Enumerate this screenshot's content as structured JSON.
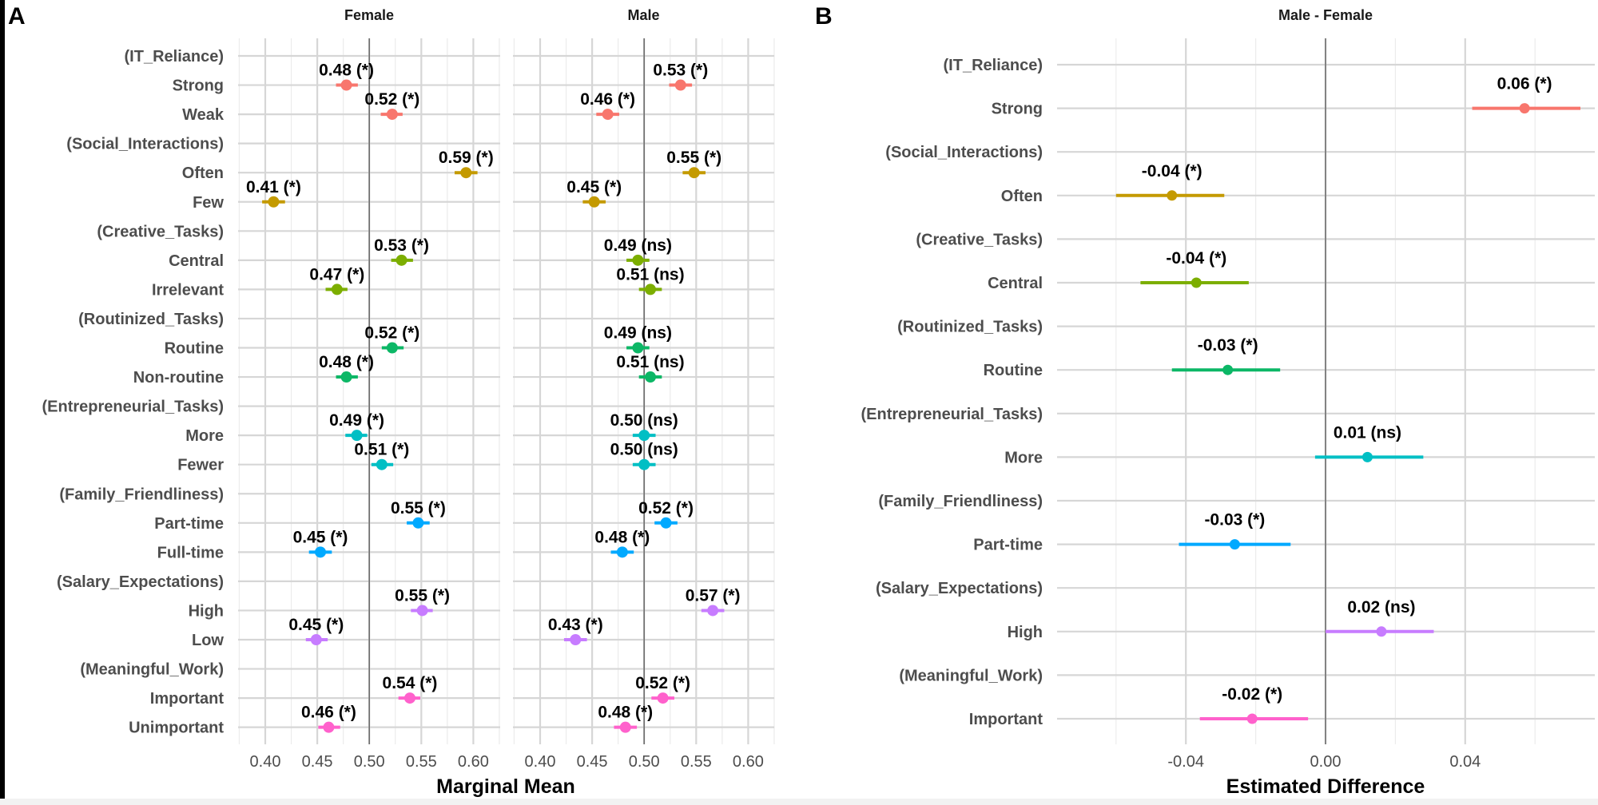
{
  "chart_data": [
    {
      "panel": "A",
      "type": "scatter",
      "subtype": "dot-and-whisker (marginal means with CI)",
      "facets": [
        "Female",
        "Male"
      ],
      "xlabel": "Marginal Mean",
      "xlim": [
        0.375,
        0.63
      ],
      "xticks": [
        "0.40",
        "0.45",
        "0.50",
        "0.55",
        "0.60"
      ],
      "reference_line": 0.5,
      "grid": true,
      "y_categories": [
        "(IT_Reliance)",
        "Strong",
        "Weak",
        "(Social_Interactions)",
        "Often",
        "Few",
        "(Creative_Tasks)",
        "Central",
        "Irrelevant",
        "(Routinized_Tasks)",
        "Routine",
        "Non-routine",
        "(Entrepreneurial_Tasks)",
        "More",
        "Fewer",
        "(Family_Friendliness)",
        "Part-time",
        "Full-time",
        "(Salary_Expectations)",
        "High",
        "Low",
        "(Meaningful_Work)",
        "Important",
        "Unimportant"
      ],
      "series": [
        {
          "name": "Female",
          "points": [
            {
              "level": "Strong",
              "attribute": "IT_Reliance",
              "estimate": 0.478,
              "lower": 0.468,
              "upper": 0.489,
              "label": "0.48 (*)",
              "color": "#F8766D"
            },
            {
              "level": "Weak",
              "attribute": "IT_Reliance",
              "estimate": 0.522,
              "lower": 0.511,
              "upper": 0.532,
              "label": "0.52 (*)",
              "color": "#F8766D"
            },
            {
              "level": "Often",
              "attribute": "Social_Interactions",
              "estimate": 0.593,
              "lower": 0.582,
              "upper": 0.604,
              "label": "0.59 (*)",
              "color": "#C49A00"
            },
            {
              "level": "Few",
              "attribute": "Social_Interactions",
              "estimate": 0.408,
              "lower": 0.397,
              "upper": 0.419,
              "label": "0.41 (*)",
              "color": "#C49A00"
            },
            {
              "level": "Central",
              "attribute": "Creative_Tasks",
              "estimate": 0.531,
              "lower": 0.521,
              "upper": 0.542,
              "label": "0.53 (*)",
              "color": "#7CAE00"
            },
            {
              "level": "Irrelevant",
              "attribute": "Creative_Tasks",
              "estimate": 0.469,
              "lower": 0.458,
              "upper": 0.479,
              "label": "0.47 (*)",
              "color": "#7CAE00"
            },
            {
              "level": "Routine",
              "attribute": "Routinized_Tasks",
              "estimate": 0.522,
              "lower": 0.512,
              "upper": 0.533,
              "label": "0.52 (*)",
              "color": "#0CB766"
            },
            {
              "level": "Non-routine",
              "attribute": "Routinized_Tasks",
              "estimate": 0.478,
              "lower": 0.468,
              "upper": 0.489,
              "label": "0.48 (*)",
              "color": "#0CB766"
            },
            {
              "level": "More",
              "attribute": "Entrepreneurial_Tasks",
              "estimate": 0.488,
              "lower": 0.477,
              "upper": 0.498,
              "label": "0.49 (*)",
              "color": "#00BFC4"
            },
            {
              "level": "Fewer",
              "attribute": "Entrepreneurial_Tasks",
              "estimate": 0.512,
              "lower": 0.502,
              "upper": 0.523,
              "label": "0.51 (*)",
              "color": "#00BFC4"
            },
            {
              "level": "Part-time",
              "attribute": "Family_Friendliness",
              "estimate": 0.547,
              "lower": 0.536,
              "upper": 0.558,
              "label": "0.55 (*)",
              "color": "#00A9FF"
            },
            {
              "level": "Full-time",
              "attribute": "Family_Friendliness",
              "estimate": 0.453,
              "lower": 0.442,
              "upper": 0.464,
              "label": "0.45 (*)",
              "color": "#00A9FF"
            },
            {
              "level": "High",
              "attribute": "Salary_Expectations",
              "estimate": 0.551,
              "lower": 0.54,
              "upper": 0.561,
              "label": "0.55 (*)",
              "color": "#C77CFF"
            },
            {
              "level": "Low",
              "attribute": "Salary_Expectations",
              "estimate": 0.449,
              "lower": 0.439,
              "upper": 0.46,
              "label": "0.45 (*)",
              "color": "#C77CFF"
            },
            {
              "level": "Important",
              "attribute": "Meaningful_Work",
              "estimate": 0.539,
              "lower": 0.528,
              "upper": 0.549,
              "label": "0.54 (*)",
              "color": "#FF61CC"
            },
            {
              "level": "Unimportant",
              "attribute": "Meaningful_Work",
              "estimate": 0.461,
              "lower": 0.451,
              "upper": 0.472,
              "label": "0.46 (*)",
              "color": "#FF61CC"
            }
          ]
        },
        {
          "name": "Male",
          "points": [
            {
              "level": "Strong",
              "attribute": "IT_Reliance",
              "estimate": 0.535,
              "lower": 0.524,
              "upper": 0.546,
              "label": "0.53 (*)",
              "color": "#F8766D"
            },
            {
              "level": "Weak",
              "attribute": "IT_Reliance",
              "estimate": 0.465,
              "lower": 0.454,
              "upper": 0.476,
              "label": "0.46 (*)",
              "color": "#F8766D"
            },
            {
              "level": "Often",
              "attribute": "Social_Interactions",
              "estimate": 0.548,
              "lower": 0.537,
              "upper": 0.559,
              "label": "0.55 (*)",
              "color": "#C49A00"
            },
            {
              "level": "Few",
              "attribute": "Social_Interactions",
              "estimate": 0.452,
              "lower": 0.441,
              "upper": 0.463,
              "label": "0.45 (*)",
              "color": "#C49A00"
            },
            {
              "level": "Central",
              "attribute": "Creative_Tasks",
              "estimate": 0.494,
              "lower": 0.483,
              "upper": 0.505,
              "label": "0.49 (ns)",
              "color": "#7CAE00"
            },
            {
              "level": "Irrelevant",
              "attribute": "Creative_Tasks",
              "estimate": 0.506,
              "lower": 0.495,
              "upper": 0.517,
              "label": "0.51 (ns)",
              "color": "#7CAE00"
            },
            {
              "level": "Routine",
              "attribute": "Routinized_Tasks",
              "estimate": 0.494,
              "lower": 0.483,
              "upper": 0.505,
              "label": "0.49 (ns)",
              "color": "#0CB766"
            },
            {
              "level": "Non-routine",
              "attribute": "Routinized_Tasks",
              "estimate": 0.506,
              "lower": 0.495,
              "upper": 0.517,
              "label": "0.51 (ns)",
              "color": "#0CB766"
            },
            {
              "level": "More",
              "attribute": "Entrepreneurial_Tasks",
              "estimate": 0.5,
              "lower": 0.489,
              "upper": 0.511,
              "label": "0.50 (ns)",
              "color": "#00BFC4"
            },
            {
              "level": "Fewer",
              "attribute": "Entrepreneurial_Tasks",
              "estimate": 0.5,
              "lower": 0.489,
              "upper": 0.511,
              "label": "0.50 (ns)",
              "color": "#00BFC4"
            },
            {
              "level": "Part-time",
              "attribute": "Family_Friendliness",
              "estimate": 0.521,
              "lower": 0.51,
              "upper": 0.532,
              "label": "0.52 (*)",
              "color": "#00A9FF"
            },
            {
              "level": "Full-time",
              "attribute": "Family_Friendliness",
              "estimate": 0.479,
              "lower": 0.468,
              "upper": 0.49,
              "label": "0.48 (*)",
              "color": "#00A9FF"
            },
            {
              "level": "High",
              "attribute": "Salary_Expectations",
              "estimate": 0.566,
              "lower": 0.555,
              "upper": 0.577,
              "label": "0.57 (*)",
              "color": "#C77CFF"
            },
            {
              "level": "Low",
              "attribute": "Salary_Expectations",
              "estimate": 0.434,
              "lower": 0.423,
              "upper": 0.445,
              "label": "0.43 (*)",
              "color": "#C77CFF"
            },
            {
              "level": "Important",
              "attribute": "Meaningful_Work",
              "estimate": 0.518,
              "lower": 0.507,
              "upper": 0.529,
              "label": "0.52 (*)",
              "color": "#FF61CC"
            },
            {
              "level": "Unimportant",
              "attribute": "Meaningful_Work",
              "estimate": 0.482,
              "lower": 0.471,
              "upper": 0.493,
              "label": "0.48 (*)",
              "color": "#FF61CC"
            }
          ]
        }
      ]
    },
    {
      "panel": "B",
      "type": "scatter",
      "subtype": "dot-and-whisker (difference with CI)",
      "title": "Male - Female",
      "xlabel": "Estimated Difference",
      "xlim": [
        -0.077,
        0.077
      ],
      "xticks": [
        "-0.04",
        "0.00",
        "0.04"
      ],
      "minor_ticks": [
        -0.06,
        -0.02,
        0.02,
        0.06
      ],
      "reference_line": 0.0,
      "grid": true,
      "y_categories": [
        "(IT_Reliance)",
        "Strong",
        "(Social_Interactions)",
        "Often",
        "(Creative_Tasks)",
        "Central",
        "(Routinized_Tasks)",
        "Routine",
        "(Entrepreneurial_Tasks)",
        "More",
        "(Family_Friendliness)",
        "Part-time",
        "(Salary_Expectations)",
        "High",
        "(Meaningful_Work)",
        "Important"
      ],
      "points": [
        {
          "level": "Strong",
          "attribute": "IT_Reliance",
          "estimate": 0.057,
          "lower": 0.042,
          "upper": 0.073,
          "label": "0.06 (*)",
          "color": "#F8766D"
        },
        {
          "level": "Often",
          "attribute": "Social_Interactions",
          "estimate": -0.044,
          "lower": -0.06,
          "upper": -0.029,
          "label": "-0.04 (*)",
          "color": "#C49A00"
        },
        {
          "level": "Central",
          "attribute": "Creative_Tasks",
          "estimate": -0.037,
          "lower": -0.053,
          "upper": -0.022,
          "label": "-0.04 (*)",
          "color": "#7CAE00"
        },
        {
          "level": "Routine",
          "attribute": "Routinized_Tasks",
          "estimate": -0.028,
          "lower": -0.044,
          "upper": -0.013,
          "label": "-0.03 (*)",
          "color": "#0CB766"
        },
        {
          "level": "More",
          "attribute": "Entrepreneurial_Tasks",
          "estimate": 0.012,
          "lower": -0.003,
          "upper": 0.028,
          "label": "0.01 (ns)",
          "color": "#00BFC4"
        },
        {
          "level": "Part-time",
          "attribute": "Family_Friendliness",
          "estimate": -0.026,
          "lower": -0.042,
          "upper": -0.01,
          "label": "-0.03 (*)",
          "color": "#00A9FF"
        },
        {
          "level": "High",
          "attribute": "Salary_Expectations",
          "estimate": 0.016,
          "lower": 0.0,
          "upper": 0.031,
          "label": "0.02 (ns)",
          "color": "#C77CFF"
        },
        {
          "level": "Important",
          "attribute": "Meaningful_Work",
          "estimate": -0.021,
          "lower": -0.036,
          "upper": -0.005,
          "label": "-0.02 (*)",
          "color": "#FF61CC"
        }
      ]
    }
  ],
  "figure": {
    "panel_letters": [
      "A",
      "B"
    ]
  }
}
